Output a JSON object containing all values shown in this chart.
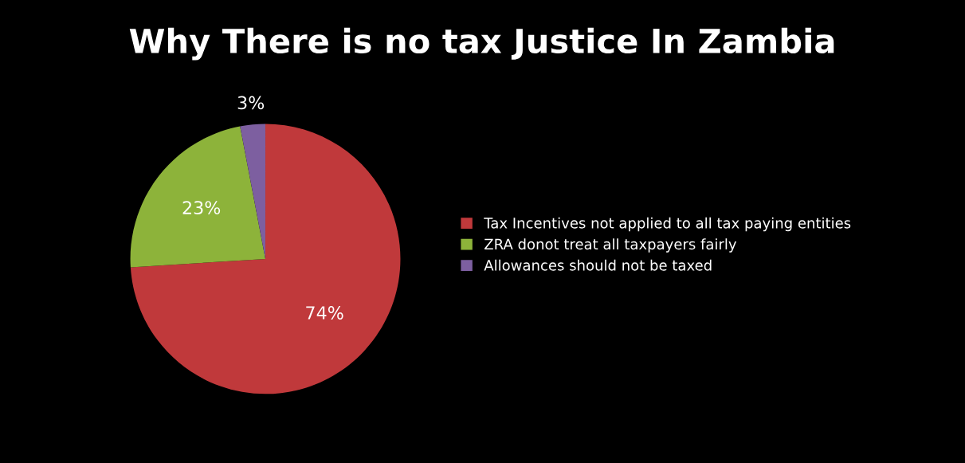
{
  "chart_data": {
    "type": "pie",
    "title": "Why There is no tax Justice In Zambia",
    "categories": [
      "Tax Incentives not applied to all tax paying entities",
      "ZRA donot treat all taxpayers fairly",
      "Allowances should not be taxed"
    ],
    "values": [
      74,
      23,
      3
    ],
    "colors": [
      "#c0393b",
      "#8db33a",
      "#7d5fa0"
    ],
    "value_labels": [
      "74%",
      "23%",
      "3%"
    ],
    "legend": "right"
  }
}
